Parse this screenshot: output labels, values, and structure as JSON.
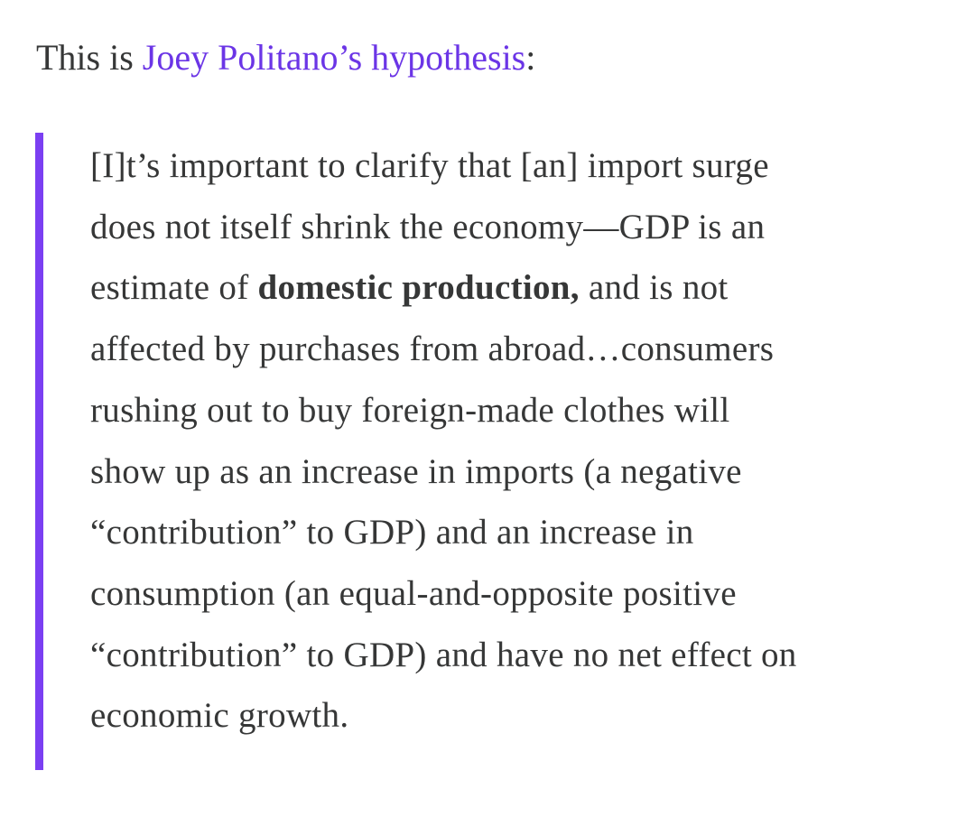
{
  "intro": {
    "prefix": "This is ",
    "link": "Joey Politano’s hypothesis",
    "suffix": ":"
  },
  "quote": {
    "lines": [
      [
        {
          "text": "[I]t’s important to clarify that [an] import surge"
        }
      ],
      [
        {
          "text": "does not itself shrink the economy—GDP is an"
        }
      ],
      [
        {
          "text": "estimate of "
        },
        {
          "text": "domestic production,",
          "bold": true
        },
        {
          "text": " and is not"
        }
      ],
      [
        {
          "text": "affected by purchases from abroad…consumers"
        }
      ],
      [
        {
          "text": "rushing out to buy foreign-made clothes will"
        }
      ],
      [
        {
          "text": "show up as an increase in imports (a negative"
        }
      ],
      [
        {
          "text": "“contribution” to GDP) and an increase in"
        }
      ],
      [
        {
          "text": "consumption (an equal-and-opposite positive"
        }
      ],
      [
        {
          "text": "“contribution” to GDP) and have no net effect on"
        }
      ],
      [
        {
          "text": "economic growth."
        }
      ]
    ]
  }
}
